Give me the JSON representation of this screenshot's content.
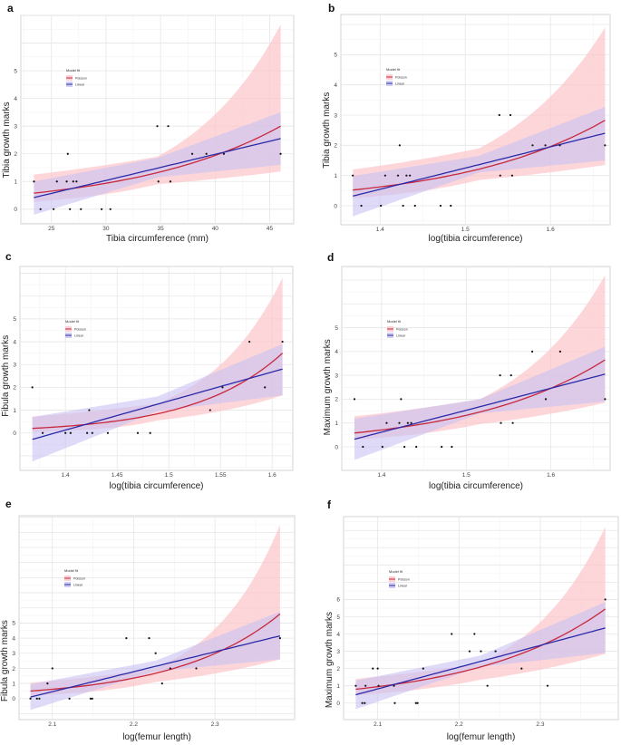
{
  "colors": {
    "poisson": "#c8283c",
    "poisson_band": "#fcc5cb",
    "linear": "#2a2aa8",
    "linear_band": "#c8c2f2",
    "points": "#111111"
  },
  "chart_data": [
    {
      "type": "scatter",
      "panel": "a",
      "xlabel": "Tibia circumference (mm)",
      "ylabel": "Tibia growth marks",
      "xlim": [
        22.2,
        47.2
      ],
      "ylim": [
        -0.53,
        7.0
      ],
      "xticks": [
        25,
        30,
        35,
        40,
        45
      ],
      "yticks": [
        0,
        1,
        2,
        3,
        4,
        5
      ],
      "grid": true,
      "legend": {
        "title": "Model fit",
        "entries": [
          "Poisson",
          "Linear"
        ],
        "placement": "upper-left"
      },
      "points": {
        "x": [
          23.4,
          24,
          25.2,
          25.5,
          26.4,
          26.5,
          26.7,
          27,
          27.3,
          27.7,
          29.6,
          30.4,
          34.7,
          34.8,
          35.7,
          35.9,
          37.9,
          39.2,
          40.8,
          46
        ],
        "y": [
          1,
          0,
          0,
          1,
          1,
          2,
          0,
          1,
          1,
          0,
          0,
          0,
          3,
          1,
          3,
          1,
          2,
          2,
          2,
          2
        ]
      },
      "fits": {
        "poisson": {
          "x": [
            23.4,
            34.7,
            46
          ],
          "y": [
            0.58,
            1.32,
            3.0
          ],
          "lower": [
            0.27,
            0.9,
            1.36
          ],
          "upper": [
            1.25,
            1.9,
            6.67
          ]
        },
        "linear": {
          "x": [
            23.4,
            34.7,
            46
          ],
          "y": [
            0.42,
            1.48,
            2.55
          ],
          "lower": [
            -0.2,
            1.15,
            1.6
          ],
          "upper": [
            1.0,
            1.85,
            3.5
          ]
        }
      }
    },
    {
      "type": "scatter",
      "panel": "b",
      "xlabel": "log(tibia circumference)",
      "ylabel": "Tibia growth marks",
      "xlim": [
        1.354,
        1.67
      ],
      "ylim": [
        -0.63,
        6.33
      ],
      "xticks": [
        1.4,
        1.5,
        1.6
      ],
      "yticks": [
        0,
        1,
        2,
        3,
        4,
        5
      ],
      "grid": true,
      "legend": {
        "title": "Model fit",
        "entries": [
          "Poisson",
          "Linear"
        ],
        "placement": "upper-left"
      },
      "points": {
        "x": [
          1.368,
          1.378,
          1.401,
          1.406,
          1.421,
          1.423,
          1.427,
          1.431,
          1.435,
          1.441,
          1.471,
          1.483,
          1.54,
          1.541,
          1.553,
          1.555,
          1.579,
          1.594,
          1.611,
          1.664
        ],
        "y": [
          1,
          0,
          0,
          1,
          1,
          2,
          0,
          1,
          1,
          0,
          0,
          0,
          3,
          1,
          3,
          1,
          2,
          2,
          2,
          2
        ]
      },
      "fits": {
        "poisson": {
          "x": [
            1.368,
            1.516,
            1.664
          ],
          "y": [
            0.52,
            1.21,
            2.83
          ],
          "lower": [
            0.25,
            0.85,
            1.35
          ],
          "upper": [
            1.2,
            1.9,
            5.9
          ]
        },
        "linear": {
          "x": [
            1.368,
            1.516,
            1.664
          ],
          "y": [
            0.32,
            1.36,
            2.4
          ],
          "lower": [
            -0.35,
            1.1,
            1.5
          ],
          "upper": [
            0.98,
            1.65,
            3.27
          ]
        }
      }
    },
    {
      "type": "scatter",
      "panel": "c",
      "xlabel": "log(tibia circumference)",
      "ylabel": "Fibula growth marks",
      "xlim": [
        1.356,
        1.62
      ],
      "ylim": [
        -1.64,
        7.3
      ],
      "xticks": [
        1.4,
        1.45,
        1.5,
        1.55,
        1.6
      ],
      "yticks": [
        0,
        1,
        2,
        3,
        4,
        5
      ],
      "grid": true,
      "legend": {
        "title": "Model fit",
        "entries": [
          "Poisson",
          "Linear"
        ],
        "placement": "upper-left"
      },
      "points": {
        "x": [
          1.368,
          1.378,
          1.4,
          1.405,
          1.421,
          1.423,
          1.426,
          1.441,
          1.47,
          1.482,
          1.54,
          1.552,
          1.578,
          1.593,
          1.61
        ],
        "y": [
          2,
          0,
          0,
          0,
          0,
          1,
          0,
          0,
          0,
          0,
          1,
          2,
          4,
          2,
          4
        ]
      },
      "fits": {
        "poisson": {
          "x": [
            1.368,
            1.489,
            1.61
          ],
          "y": [
            0.2,
            0.84,
            3.5
          ],
          "lower": [
            0.05,
            0.55,
            1.65
          ],
          "upper": [
            0.72,
            1.3,
            6.8
          ]
        },
        "linear": {
          "x": [
            1.368,
            1.489,
            1.61
          ],
          "y": [
            -0.28,
            1.26,
            2.8
          ],
          "lower": [
            -1.25,
            0.95,
            1.65
          ],
          "upper": [
            0.7,
            1.6,
            3.9
          ]
        }
      }
    },
    {
      "type": "scatter",
      "panel": "d",
      "xlabel": "log(tibia circumference)",
      "ylabel": "Maximum growth marks",
      "xlim": [
        1.353,
        1.67
      ],
      "ylim": [
        -0.99,
        7.57
      ],
      "xticks": [
        1.4,
        1.5,
        1.6
      ],
      "yticks": [
        0,
        1,
        2,
        3,
        4,
        5
      ],
      "grid": true,
      "legend": {
        "title": "Model fit",
        "entries": [
          "Poisson",
          "Linear"
        ],
        "placement": "upper-left"
      },
      "points": {
        "x": [
          1.368,
          1.378,
          1.401,
          1.406,
          1.421,
          1.423,
          1.427,
          1.431,
          1.435,
          1.441,
          1.471,
          1.483,
          1.54,
          1.541,
          1.553,
          1.555,
          1.578,
          1.594,
          1.611,
          1.664
        ],
        "y": [
          2,
          0,
          0,
          1,
          1,
          2,
          0,
          1,
          1,
          0,
          0,
          0,
          3,
          1,
          3,
          1,
          4,
          2,
          4,
          2
        ]
      },
      "fits": {
        "poisson": {
          "x": [
            1.368,
            1.516,
            1.664
          ],
          "y": [
            0.58,
            1.46,
            3.65
          ],
          "lower": [
            0.3,
            0.95,
            1.85
          ],
          "upper": [
            1.28,
            2.0,
            7.2
          ]
        },
        "linear": {
          "x": [
            1.368,
            1.516,
            1.664
          ],
          "y": [
            0.32,
            1.68,
            3.05
          ],
          "lower": [
            -0.55,
            1.4,
            1.9
          ],
          "upper": [
            1.18,
            2.0,
            4.2
          ]
        }
      }
    },
    {
      "type": "scatter",
      "panel": "e",
      "xlabel": "log(femur length)",
      "ylabel": "Fibula growth marks",
      "xlim": [
        2.059,
        2.398
      ],
      "ylim": [
        -1.39,
        12.1
      ],
      "xticks": [
        2.1,
        2.2,
        2.3
      ],
      "yticks": [
        0,
        1,
        2,
        3,
        4,
        5
      ],
      "grid": true,
      "legend": {
        "title": "Model fit",
        "entries": [
          "Poisson",
          "Linear"
        ],
        "placement": "upper-left"
      },
      "points": {
        "x": [
          2.073,
          2.081,
          2.084,
          2.094,
          2.1,
          2.121,
          2.147,
          2.149,
          2.191,
          2.219,
          2.227,
          2.235,
          2.245,
          2.277,
          2.38
        ],
        "y": [
          0,
          0,
          0,
          1,
          2,
          0,
          0,
          0,
          4,
          4,
          3,
          1,
          2,
          2,
          4
        ]
      },
      "fits": {
        "poisson": {
          "x": [
            2.073,
            2.2265,
            2.38
          ],
          "y": [
            0.5,
            1.67,
            5.6
          ],
          "lower": [
            0.2,
            1.1,
            2.6
          ],
          "upper": [
            1.05,
            2.0,
            11.5
          ]
        },
        "linear": {
          "x": [
            2.073,
            2.2265,
            2.38
          ],
          "y": [
            0.1,
            2.13,
            4.15
          ],
          "lower": [
            -0.75,
            1.8,
            2.6
          ],
          "upper": [
            0.95,
            2.5,
            5.75
          ]
        }
      }
    },
    {
      "type": "scatter",
      "panel": "f",
      "xlabel": "log(femur length)",
      "ylabel": "Maximum growth marks",
      "xlim": [
        2.058,
        2.396
      ],
      "ylim": [
        -0.96,
        10.8
      ],
      "xticks": [
        2.1,
        2.2,
        2.3
      ],
      "yticks": [
        0,
        1,
        2,
        3,
        4,
        5,
        6
      ],
      "grid": true,
      "legend": {
        "title": "Model fit",
        "entries": [
          "Poisson",
          "Linear"
        ],
        "placement": "upper-left"
      },
      "points": {
        "x": [
          2.073,
          2.081,
          2.084,
          2.085,
          2.094,
          2.1,
          2.101,
          2.12,
          2.121,
          2.147,
          2.149,
          2.156,
          2.191,
          2.213,
          2.219,
          2.227,
          2.235,
          2.245,
          2.277,
          2.309,
          2.38
        ],
        "y": [
          1,
          0,
          0,
          1,
          2,
          2,
          1,
          1,
          0,
          0,
          0,
          2,
          4,
          3,
          4,
          3,
          1,
          3,
          2,
          1,
          6
        ]
      },
      "fits": {
        "poisson": {
          "x": [
            2.073,
            2.2265,
            2.38
          ],
          "y": [
            0.8,
            2.09,
            5.45
          ],
          "lower": [
            0.45,
            1.35,
            2.85
          ],
          "upper": [
            1.4,
            2.3,
            10.2
          ]
        },
        "linear": {
          "x": [
            2.073,
            2.2265,
            2.38
          ],
          "y": [
            0.48,
            2.41,
            4.35
          ],
          "lower": [
            -0.35,
            2.1,
            2.9
          ],
          "upper": [
            1.3,
            2.75,
            5.85
          ]
        }
      }
    }
  ]
}
